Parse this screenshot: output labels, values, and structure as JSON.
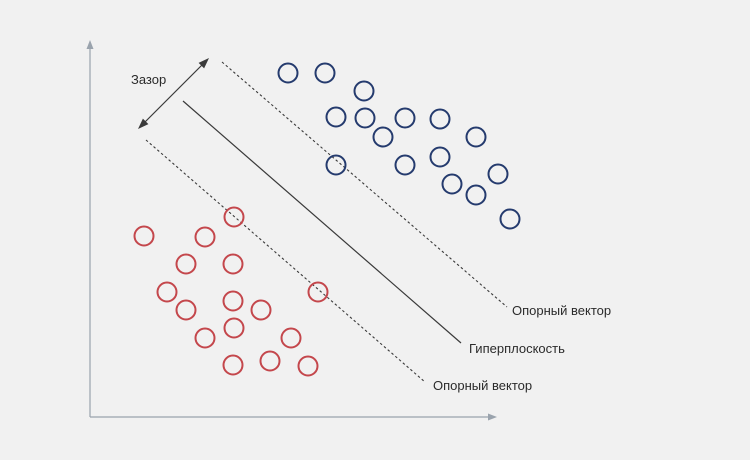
{
  "labels": {
    "margin": "Зазор",
    "support_vector_top": "Опорный вектор",
    "hyperplane": "Гиперплоскость",
    "support_vector_bottom": "Опорный вектор"
  },
  "colors": {
    "class_a": "#253b6e",
    "class_b": "#c4474c",
    "axis": "#9aa3ad",
    "background": "#f1f1f1"
  }
}
